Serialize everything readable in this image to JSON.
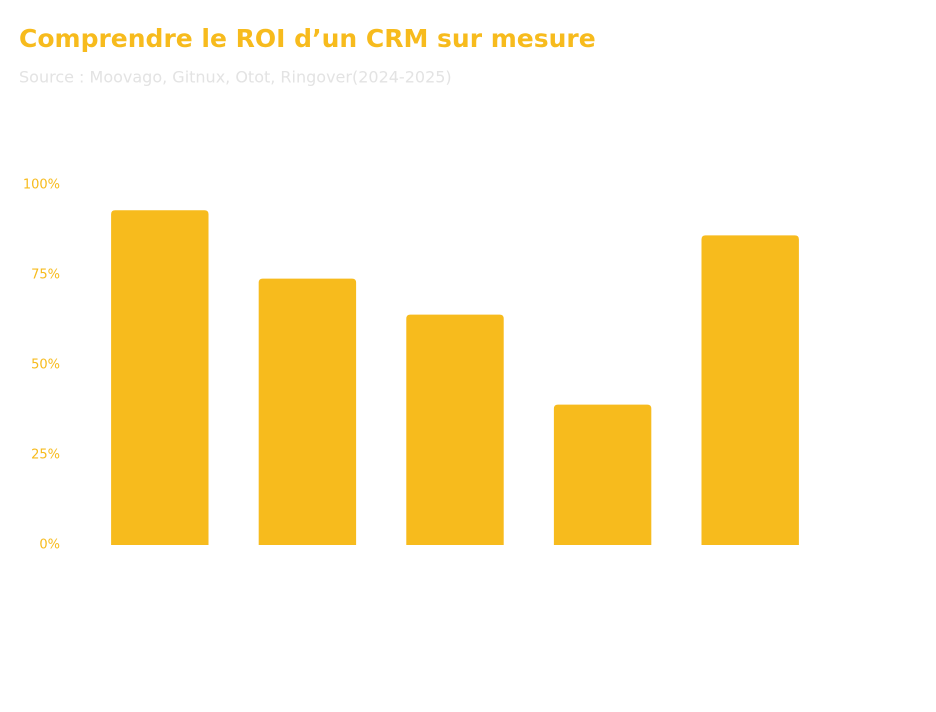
{
  "chart_data": {
    "type": "bar",
    "title": "Comprendre le ROI d’un CRM sur mesure",
    "subtitle": "Source : Moovago, Gitnux, Otot, Ringover(2024-2025)",
    "categories": [
      null,
      null,
      null,
      null,
      null
    ],
    "values": [
      93,
      74,
      64,
      39,
      86
    ],
    "color": "#f7bb1d",
    "ylim": [
      0,
      100
    ],
    "yticks": [
      {
        "value": 0,
        "label": "0%"
      },
      {
        "value": 25,
        "label": "25%"
      },
      {
        "value": 50,
        "label": "50%"
      },
      {
        "value": 75,
        "label": "75%"
      },
      {
        "value": 100,
        "label": "100%"
      }
    ],
    "grid": false
  }
}
